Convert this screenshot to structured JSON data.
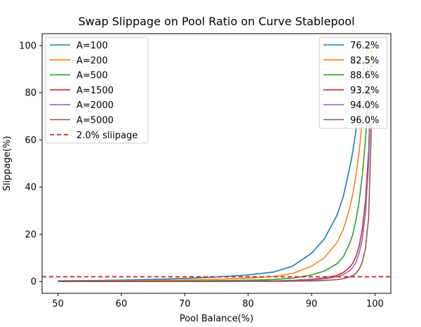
{
  "chart_data": {
    "type": "line",
    "title": "Swap Slippage on Pool Ratio on Curve Stablepool",
    "xlabel": "Pool Balance(%)",
    "ylabel": "Slippage(%)",
    "xlim": [
      47.5,
      102.5
    ],
    "ylim": [
      -5,
      105
    ],
    "xticks": [
      50,
      60,
      70,
      80,
      90,
      100
    ],
    "yticks": [
      0,
      20,
      40,
      60,
      80,
      100
    ],
    "grid": false,
    "x": [
      50,
      55,
      60,
      65,
      70,
      75,
      80,
      84,
      87,
      90,
      92,
      94,
      95,
      96,
      96.5,
      97,
      97.5,
      98,
      98.5,
      99,
      99.5
    ],
    "series": [
      {
        "name": "A=100",
        "color": "#1f77b4",
        "values": [
          0.3,
          0.4,
          0.6,
          0.9,
          1.3,
          1.9,
          2.8,
          4.0,
          6.5,
          12.0,
          18.0,
          28.0,
          36.0,
          48.0,
          55.0,
          64.0,
          74.0,
          86.0,
          95.0,
          100.0,
          100.0
        ]
      },
      {
        "name": "A=200",
        "color": "#ff7f0e",
        "values": [
          0.15,
          0.2,
          0.3,
          0.45,
          0.65,
          0.95,
          1.4,
          2.1,
          3.4,
          6.5,
          10.0,
          16.5,
          22.0,
          31.0,
          37.0,
          45.0,
          55.0,
          68.0,
          82.0,
          96.0,
          100.0
        ]
      },
      {
        "name": "A=500",
        "color": "#2ca02c",
        "values": [
          0.06,
          0.08,
          0.12,
          0.18,
          0.26,
          0.38,
          0.56,
          0.85,
          1.4,
          2.8,
          4.4,
          7.5,
          10.5,
          16.0,
          20.0,
          26.0,
          34.0,
          45.0,
          60.0,
          80.0,
          100.0
        ]
      },
      {
        "name": "A=1500",
        "color": "#d62728",
        "values": [
          0.02,
          0.03,
          0.04,
          0.06,
          0.09,
          0.13,
          0.19,
          0.28,
          0.47,
          0.95,
          1.5,
          2.6,
          3.8,
          6.0,
          7.8,
          10.5,
          15.0,
          22.0,
          34.0,
          55.0,
          95.0
        ]
      },
      {
        "name": "A=2000",
        "color": "#9467bd",
        "values": [
          0.015,
          0.02,
          0.03,
          0.045,
          0.065,
          0.1,
          0.14,
          0.21,
          0.35,
          0.7,
          1.1,
          2.0,
          2.9,
          4.6,
          6.0,
          8.2,
          12.0,
          18.0,
          29.0,
          50.0,
          92.0
        ]
      },
      {
        "name": "A=5000",
        "color": "#8c564b",
        "values": [
          0.006,
          0.008,
          0.012,
          0.018,
          0.026,
          0.04,
          0.056,
          0.085,
          0.14,
          0.28,
          0.45,
          0.8,
          1.2,
          1.9,
          2.5,
          3.5,
          5.2,
          8.3,
          14.0,
          27.0,
          72.0
        ]
      }
    ],
    "threshold": {
      "name": "2.0% sliipage",
      "value": 2.0,
      "color": "#d62728"
    },
    "legend_left": {
      "placement": "top-left",
      "entries": [
        "A=100",
        "A=200",
        "A=500",
        "A=1500",
        "A=2000",
        "A=5000",
        "2.0% sliipage"
      ]
    },
    "legend_right": {
      "placement": "top-right",
      "entries": [
        {
          "label": "76.2%",
          "color": "#1f77b4"
        },
        {
          "label": "82.5%",
          "color": "#ff7f0e"
        },
        {
          "label": "88.6%",
          "color": "#2ca02c"
        },
        {
          "label": "93.2%",
          "color": "#d62728"
        },
        {
          "label": "94.0%",
          "color": "#9467bd"
        },
        {
          "label": "96.0%",
          "color": "#8c564b"
        }
      ]
    }
  }
}
